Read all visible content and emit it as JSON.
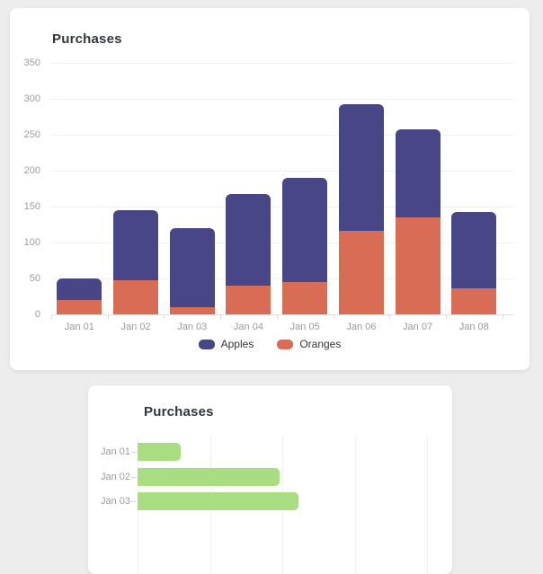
{
  "cards": {
    "top": {
      "title": "Purchases"
    },
    "bottom": {
      "title": "Purchases"
    }
  },
  "colors": {
    "background": "#ededed",
    "card": "#ffffff",
    "apples": "#484686",
    "oranges": "#d96c55",
    "green": "#a8dd82",
    "title_text": "#32363b",
    "axis_text": "#9b9b9b"
  },
  "chart_data": [
    {
      "type": "bar",
      "variant": "stacked-vertical",
      "title": "Purchases",
      "categories": [
        "Jan 01",
        "Jan 02",
        "Jan 03",
        "Jan 04",
        "Jan 05",
        "Jan 06",
        "Jan 07",
        "Jan 08"
      ],
      "series": [
        {
          "name": "Apples",
          "color": "#484686",
          "values": [
            30,
            97,
            110,
            128,
            145,
            176,
            123,
            106
          ]
        },
        {
          "name": "Oranges",
          "color": "#d96c55",
          "values": [
            20,
            48,
            10,
            40,
            45,
            116,
            135,
            36
          ]
        }
      ],
      "stack_order_bottom_to_top": [
        "Oranges",
        "Apples"
      ],
      "stacked_totals": [
        50,
        145,
        120,
        168,
        190,
        292,
        258,
        142
      ],
      "xlabel": "",
      "ylabel": "",
      "ylim": [
        0,
        350
      ],
      "ytick_step": 50,
      "ytick_labels": [
        "0",
        "50",
        "100",
        "150",
        "200",
        "250",
        "300",
        "350"
      ],
      "grid": "horizontal",
      "legend_position": "bottom",
      "legend_labels": [
        "Apples",
        "Oranges"
      ]
    },
    {
      "type": "bar",
      "variant": "horizontal",
      "title": "Purchases",
      "categories": [
        "Jan 01",
        "Jan 02",
        "Jan 03"
      ],
      "series": [
        {
          "name": "Purchases",
          "color": "#a8dd82",
          "values": [
            30,
            98,
            111
          ]
        }
      ],
      "xlabel": "",
      "ylabel": "",
      "xlim": [
        0,
        200
      ],
      "xtick_step": 50,
      "grid": "vertical",
      "legend_position": "none"
    }
  ]
}
